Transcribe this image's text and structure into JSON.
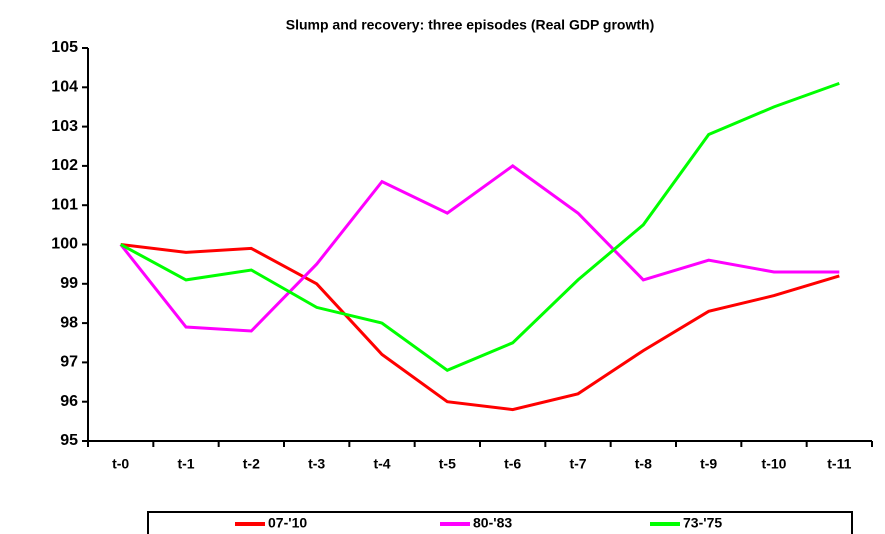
{
  "chart_data": {
    "type": "line",
    "title": "Slump and recovery: three episodes (Real GDP growth)",
    "categories": [
      "t-0",
      "t-1",
      "t-2",
      "t-3",
      "t-4",
      "t-5",
      "t-6",
      "t-7",
      "t-8",
      "t-9",
      "t-10",
      "t-11"
    ],
    "series": [
      {
        "name": "07-'10",
        "color": "#ff0000",
        "values": [
          100,
          99.8,
          99.9,
          99.0,
          97.2,
          96.0,
          95.8,
          96.2,
          97.3,
          98.3,
          98.7,
          99.2
        ]
      },
      {
        "name": "80-'83",
        "color": "#ff00ff",
        "values": [
          100,
          97.9,
          97.8,
          99.5,
          101.6,
          100.8,
          102.0,
          100.8,
          99.1,
          99.6,
          99.3,
          99.3
        ]
      },
      {
        "name": "73-'75",
        "color": "#00ff00",
        "values": [
          100,
          99.1,
          99.35,
          98.4,
          98.0,
          96.8,
          97.5,
          99.1,
          100.5,
          102.8,
          103.5,
          104.1
        ]
      }
    ],
    "ylim": [
      95,
      105
    ],
    "yticks": [
      95,
      96,
      97,
      98,
      99,
      100,
      101,
      102,
      103,
      104,
      105
    ],
    "grid": false,
    "legend": "bottom"
  }
}
